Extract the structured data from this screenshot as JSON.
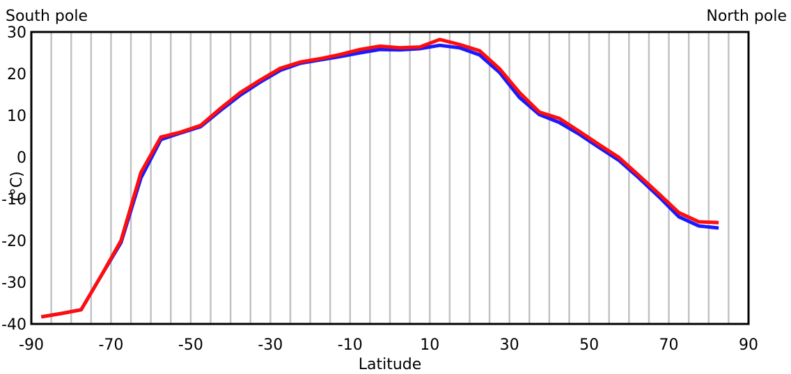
{
  "chart_data": {
    "type": "line",
    "title": "",
    "xlabel": "Latitude",
    "ylabel": "(°C)",
    "xlim": [
      -90,
      90
    ],
    "ylim": [
      -40,
      30
    ],
    "xticks": [
      -90,
      -70,
      -50,
      -30,
      -10,
      10,
      30,
      50,
      70,
      90
    ],
    "yticks": [
      -40,
      -30,
      -20,
      -10,
      0,
      10,
      20,
      30
    ],
    "xtick_labels": [
      "-90",
      "-70",
      "-50",
      "-30",
      "-10",
      "10",
      "30",
      "50",
      "70",
      "90"
    ],
    "ytick_labels": [
      "-40",
      "-30",
      "-20",
      "-10",
      "0",
      "10",
      "20",
      "30"
    ],
    "annotations": {
      "left": "South pole",
      "right": "North pole"
    },
    "grid": true,
    "x": [
      -87.5,
      -82.5,
      -77.5,
      -72.5,
      -67.5,
      -62.5,
      -57.5,
      -52.5,
      -47.5,
      -42.5,
      -37.5,
      -32.5,
      -27.5,
      -22.5,
      -17.5,
      -12.5,
      -7.5,
      -2.5,
      2.5,
      7.5,
      12.5,
      17.5,
      22.5,
      27.5,
      32.5,
      37.5,
      42.5,
      47.5,
      52.5,
      57.5,
      62.5,
      67.5,
      72.5,
      77.5,
      82.5
    ],
    "series": [
      {
        "values": [
          -38.3,
          -37.5,
          -36.6,
          -28.5,
          -20.5,
          -5.0,
          4.2,
          5.8,
          7.3,
          11.2,
          14.9,
          18.0,
          20.8,
          22.5,
          23.3,
          24.1,
          25.0,
          25.8,
          25.7,
          26.0,
          26.8,
          26.2,
          24.5,
          20.3,
          14.3,
          10.2,
          8.3,
          5.5,
          2.3,
          -0.8,
          -5.0,
          -9.5,
          -14.3,
          -16.5,
          -17.0
        ],
        "color": "#1a1aff"
      },
      {
        "values": [
          -38.3,
          -37.5,
          -36.6,
          -28.5,
          -20.0,
          -3.7,
          4.8,
          6.0,
          7.6,
          11.7,
          15.5,
          18.5,
          21.3,
          22.8,
          23.6,
          24.6,
          25.8,
          26.6,
          26.2,
          26.4,
          28.2,
          27.0,
          25.5,
          21.2,
          15.5,
          10.8,
          9.3,
          6.2,
          3.0,
          -0.1,
          -4.4,
          -8.8,
          -13.3,
          -15.5,
          -15.7
        ],
        "color": "#ff0d0d"
      }
    ]
  }
}
